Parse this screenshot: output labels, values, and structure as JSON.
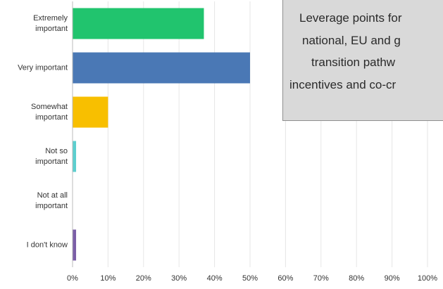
{
  "chart_data": {
    "type": "bar",
    "orientation": "horizontal",
    "categories": [
      "Extremely\nimportant",
      "Very important",
      "Somewhat\nimportant",
      "Not so\nimportant",
      "Not at all\nimportant",
      "I don't know"
    ],
    "values": [
      37,
      50,
      10,
      1,
      0,
      1
    ],
    "colors": [
      "#21c46e",
      "#4a78b5",
      "#f8bf00",
      "#5ccfcf",
      "#7b5ea7",
      "#7b5ea7"
    ],
    "xlim": [
      0,
      100
    ],
    "xticks": [
      {
        "value": 0,
        "label": "0%"
      },
      {
        "value": 10,
        "label": "10%"
      },
      {
        "value": 20,
        "label": "20%"
      },
      {
        "value": 30,
        "label": "30%"
      },
      {
        "value": 40,
        "label": "40%"
      },
      {
        "value": 50,
        "label": "50%"
      },
      {
        "value": 60,
        "label": "60%"
      },
      {
        "value": 70,
        "label": "70%"
      },
      {
        "value": 80,
        "label": "80%"
      },
      {
        "value": 90,
        "label": "90%"
      },
      {
        "value": 100,
        "label": "100%"
      }
    ],
    "grid": true
  },
  "overlay": {
    "lines": [
      "Leverage points for",
      "national, EU and g",
      "transition pathw",
      "incentives and co-cr"
    ]
  }
}
